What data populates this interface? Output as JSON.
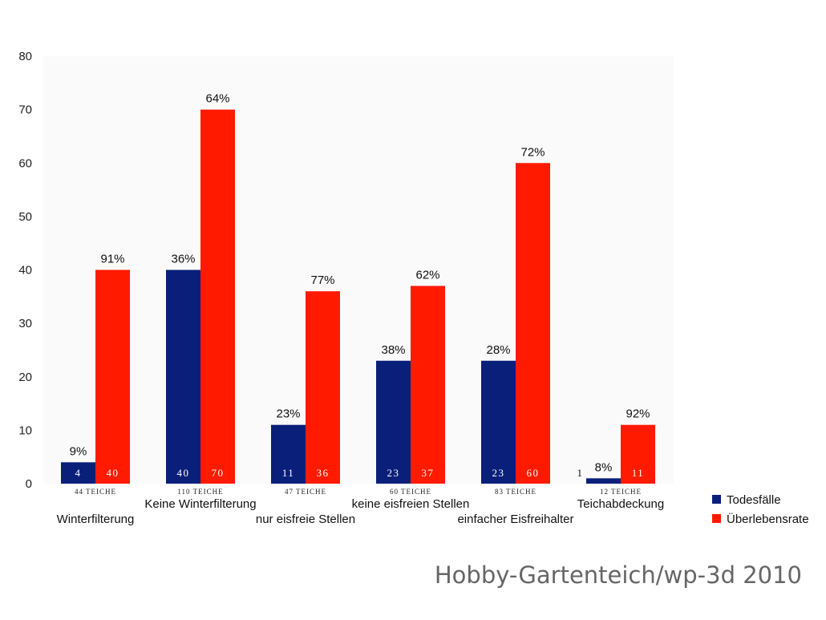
{
  "chart_data": {
    "type": "bar",
    "title": "",
    "xlabel": "",
    "ylabel": "",
    "ylim": [
      0,
      80
    ],
    "yticks": [
      0,
      10,
      20,
      30,
      40,
      50,
      60,
      70,
      80
    ],
    "grid": false,
    "legend_position": "bottom-right",
    "categories": [
      "Winterfilterung",
      "Keine Winterfilterung",
      "nur eisfreie Stellen",
      "keine eisfreien Stellen",
      "einfacher Eisfreihalter",
      "Teichabdeckung"
    ],
    "pond_counts": [
      "44 Teiche",
      "110 Teiche",
      "47 Teiche",
      "60 Teiche",
      "83 Teiche",
      "12 Teiche"
    ],
    "series": [
      {
        "name": "Todesfälle",
        "color": "#0a1f7a",
        "values": [
          4,
          40,
          11,
          23,
          23,
          1
        ],
        "value_labels": [
          "4",
          "40",
          "11",
          "23",
          "23",
          "1"
        ],
        "percent_labels": [
          "9%",
          "36%",
          "23%",
          "38%",
          "28%",
          "8%"
        ]
      },
      {
        "name": "Überlebensrate",
        "color": "#ff1a00",
        "values": [
          40,
          70,
          36,
          37,
          60,
          11
        ],
        "value_labels": [
          "40",
          "70",
          "36",
          "37",
          "60",
          "11"
        ],
        "percent_labels": [
          "91%",
          "64%",
          "77%",
          "62%",
          "72%",
          "92%"
        ]
      }
    ]
  },
  "credit": "Hobby-Gartenteich/wp-3d 2010"
}
